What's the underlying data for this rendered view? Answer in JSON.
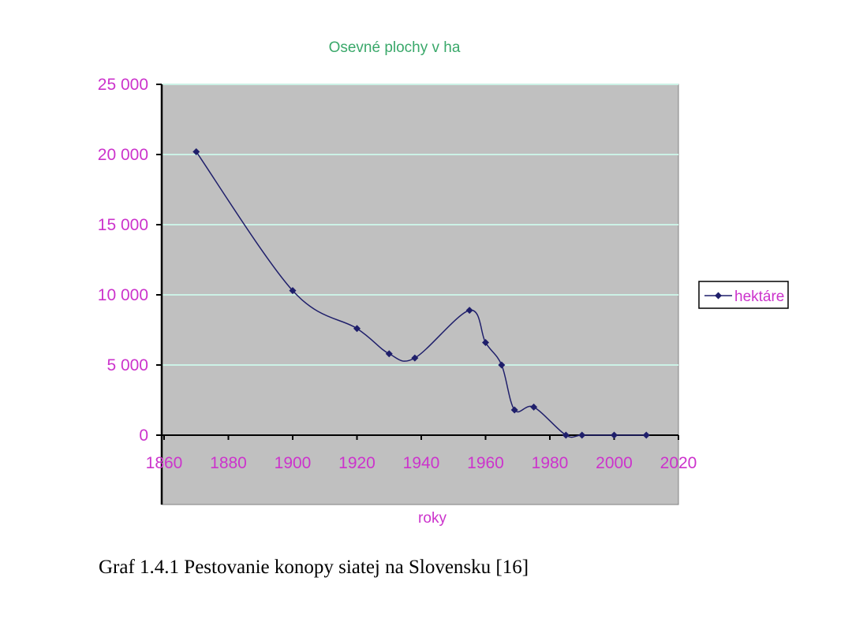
{
  "chart_data": {
    "type": "line",
    "title": "Osevné plochy v ha",
    "xlabel": "roky",
    "ylabel": "",
    "xlim": [
      1860,
      2020
    ],
    "ylim": [
      -5000,
      25000
    ],
    "x_ticks": [
      1860,
      1880,
      1900,
      1920,
      1940,
      1960,
      1980,
      2000,
      2020
    ],
    "x_tick_labels": [
      "1860",
      "1880",
      "1900",
      "1920",
      "1940",
      "1960",
      "1980",
      "2000",
      "2020"
    ],
    "y_ticks": [
      0,
      5000,
      10000,
      15000,
      20000,
      25000
    ],
    "y_tick_labels": [
      "0",
      "5 000",
      "10 000",
      "15 000",
      "20 000",
      "25 000"
    ],
    "grid": true,
    "legend_position": "right",
    "series": [
      {
        "name": "hektáre",
        "x": [
          1870,
          1900,
          1920,
          1930,
          1938,
          1955,
          1960,
          1965,
          1969,
          1975,
          1985,
          1990,
          2000,
          2010
        ],
        "values": [
          20200,
          10300,
          7600,
          5800,
          5500,
          8900,
          6600,
          5000,
          1800,
          2000,
          0,
          0,
          0,
          0
        ]
      }
    ],
    "colors": {
      "plot_bg": "#c0c0c0",
      "line": "#1f1f6b",
      "gridline": "#ccf2e6",
      "tick_text": "#cc33cc",
      "title_text": "#3aa86a"
    }
  },
  "caption": "Graf 1.4.1 Pestovanie konopy siatej na Slovensku [16]"
}
